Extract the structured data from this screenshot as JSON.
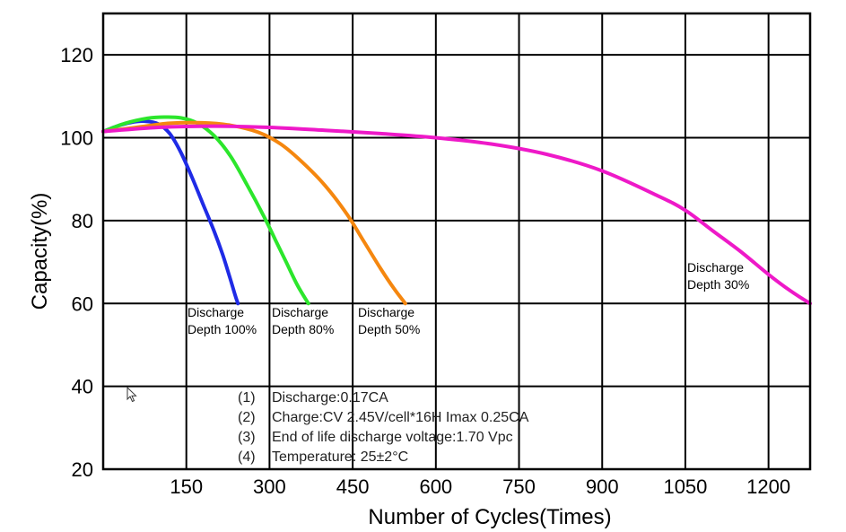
{
  "chart_data": {
    "type": "line",
    "xlabel": "Number of Cycles(Times)",
    "ylabel": "Capacity(%)",
    "xlim": [
      0,
      1275
    ],
    "ylim": [
      20,
      130
    ],
    "x_ticks": [
      150,
      300,
      450,
      600,
      750,
      900,
      1050,
      1200
    ],
    "y_ticks": [
      20,
      40,
      60,
      80,
      100,
      120
    ],
    "grid": true,
    "series": [
      {
        "name": "Discharge Depth 100%",
        "color": "#1f2be6",
        "points": [
          [
            0,
            101.5
          ],
          [
            25,
            102.8
          ],
          [
            50,
            103.7
          ],
          [
            75,
            104.0
          ],
          [
            100,
            103.3
          ],
          [
            120,
            101.0
          ],
          [
            140,
            96.5
          ],
          [
            160,
            90.5
          ],
          [
            180,
            84.0
          ],
          [
            200,
            77.5
          ],
          [
            215,
            72.0
          ],
          [
            228,
            66.5
          ],
          [
            238,
            62.0
          ],
          [
            243,
            60.0
          ]
        ]
      },
      {
        "name": "Discharge Depth 80%",
        "color": "#2ce62c",
        "points": [
          [
            0,
            101.5
          ],
          [
            40,
            103.5
          ],
          [
            80,
            104.7
          ],
          [
            110,
            105.0
          ],
          [
            140,
            104.8
          ],
          [
            170,
            103.5
          ],
          [
            200,
            100.5
          ],
          [
            230,
            95.5
          ],
          [
            260,
            88.5
          ],
          [
            290,
            81.0
          ],
          [
            310,
            75.5
          ],
          [
            330,
            70.0
          ],
          [
            350,
            64.5
          ],
          [
            370,
            60.0
          ]
        ]
      },
      {
        "name": "Discharge Depth 50%",
        "color": "#f5870f",
        "points": [
          [
            0,
            101.5
          ],
          [
            60,
            102.5
          ],
          [
            120,
            103.5
          ],
          [
            180,
            103.6
          ],
          [
            230,
            103.0
          ],
          [
            280,
            101.3
          ],
          [
            320,
            98.5
          ],
          [
            360,
            94.0
          ],
          [
            400,
            88.5
          ],
          [
            440,
            81.5
          ],
          [
            470,
            75.0
          ],
          [
            500,
            68.5
          ],
          [
            525,
            63.5
          ],
          [
            545,
            60.0
          ]
        ]
      },
      {
        "name": "Discharge Depth 30%",
        "color": "#ee19c8",
        "points": [
          [
            0,
            101.5
          ],
          [
            100,
            102.5
          ],
          [
            200,
            102.8
          ],
          [
            300,
            102.5
          ],
          [
            400,
            101.8
          ],
          [
            500,
            101.0
          ],
          [
            600,
            100.0
          ],
          [
            700,
            98.5
          ],
          [
            800,
            96.0
          ],
          [
            900,
            92.0
          ],
          [
            1000,
            86.0
          ],
          [
            1050,
            82.5
          ],
          [
            1100,
            77.5
          ],
          [
            1150,
            72.5
          ],
          [
            1200,
            67.0
          ],
          [
            1240,
            63.0
          ],
          [
            1275,
            60.0
          ]
        ]
      }
    ],
    "annotations": [
      {
        "lines": [
          "Discharge",
          "Depth 100%"
        ]
      },
      {
        "lines": [
          "Discharge",
          "Depth 80%"
        ]
      },
      {
        "lines": [
          "Discharge",
          "Depth 50%"
        ]
      },
      {
        "lines": [
          "Discharge",
          "Depth 30%"
        ]
      }
    ],
    "notes": [
      {
        "num": "(1)",
        "text": "Discharge:0.17CA"
      },
      {
        "num": "(2)",
        "text": "Charge:CV 2.45V/cell*16H Imax 0.25CA"
      },
      {
        "num": "(3)",
        "text": "End of life discharge voltage:1.70 Vpc"
      },
      {
        "num": "(4)",
        "text": "Temperature: 25±2°C"
      }
    ]
  }
}
